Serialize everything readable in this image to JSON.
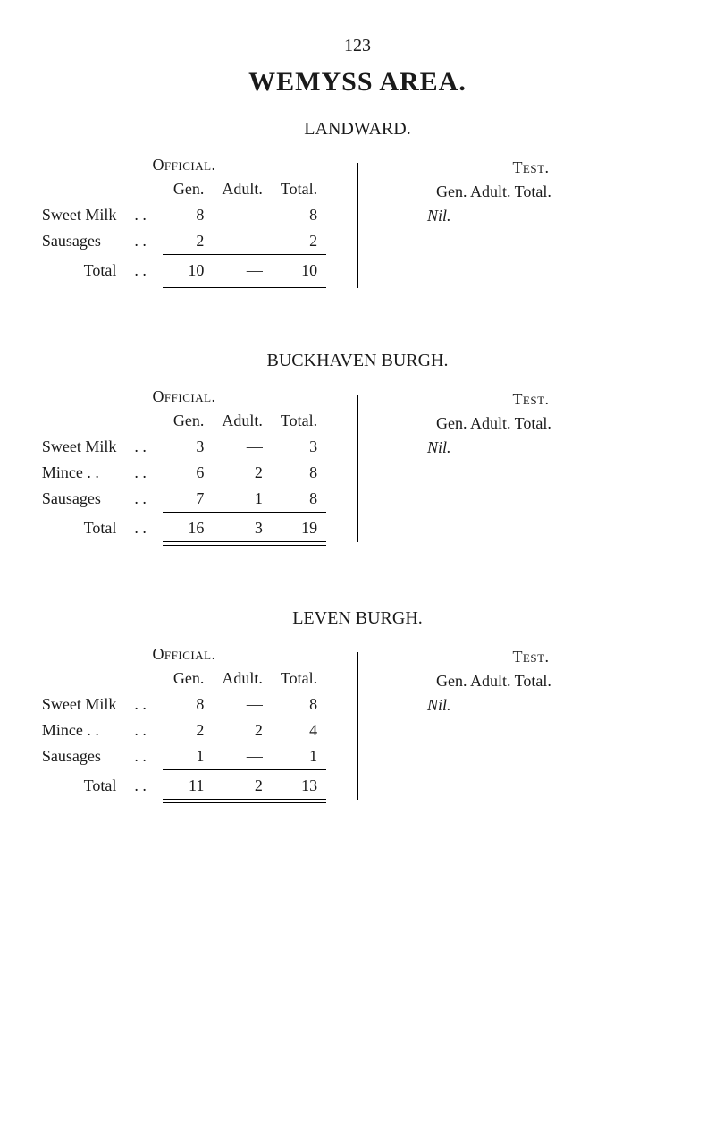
{
  "page_number": "123",
  "main_title": "WEMYSS AREA.",
  "sections": [
    {
      "title": "LANDWARD.",
      "divider_height": 140,
      "official": {
        "label": "Official.",
        "headers": [
          "Gen.",
          "Adult.",
          "Total."
        ],
        "rows": [
          {
            "label": "Sweet Milk",
            "gen": "8",
            "adult": "—",
            "total": "8"
          },
          {
            "label": "Sausages",
            "gen": "2",
            "adult": "—",
            "total": "2"
          }
        ],
        "total": {
          "label": "Total",
          "gen": "10",
          "adult": "—",
          "total": "10"
        }
      },
      "test": {
        "label": "Test.",
        "headers": "Gen. Adult. Total.",
        "nil": "Nil."
      }
    },
    {
      "title": "BUCKHAVEN BURGH.",
      "divider_height": 165,
      "official": {
        "label": "Official.",
        "headers": [
          "Gen.",
          "Adult.",
          "Total."
        ],
        "rows": [
          {
            "label": "Sweet Milk",
            "gen": "3",
            "adult": "—",
            "total": "3"
          },
          {
            "label": "Mince . .",
            "gen": "6",
            "adult": "2",
            "total": "8"
          },
          {
            "label": "Sausages",
            "gen": "7",
            "adult": "1",
            "total": "8"
          }
        ],
        "total": {
          "label": "Total",
          "gen": "16",
          "adult": "3",
          "total": "19"
        }
      },
      "test": {
        "label": "Test.",
        "headers": "Gen. Adult. Total.",
        "nil": "Nil."
      }
    },
    {
      "title": "LEVEN BURGH.",
      "divider_height": 165,
      "official": {
        "label": "Official.",
        "headers": [
          "Gen.",
          "Adult.",
          "Total."
        ],
        "rows": [
          {
            "label": "Sweet Milk",
            "gen": "8",
            "adult": "—",
            "total": "8"
          },
          {
            "label": "Mince . .",
            "gen": "2",
            "adult": "2",
            "total": "4"
          },
          {
            "label": "Sausages",
            "gen": "1",
            "adult": "—",
            "total": "1"
          }
        ],
        "total": {
          "label": "Total",
          "gen": "11",
          "adult": "2",
          "total": "13"
        }
      },
      "test": {
        "label": "Test.",
        "headers": "Gen. Adult. Total.",
        "nil": "Nil."
      }
    }
  ],
  "style": {
    "background": "#ffffff",
    "text_color": "#1a1a1a",
    "font_family": "Times New Roman",
    "body_fontsize": 18,
    "title_fontsize": 30,
    "section_title_fontsize": 20
  }
}
